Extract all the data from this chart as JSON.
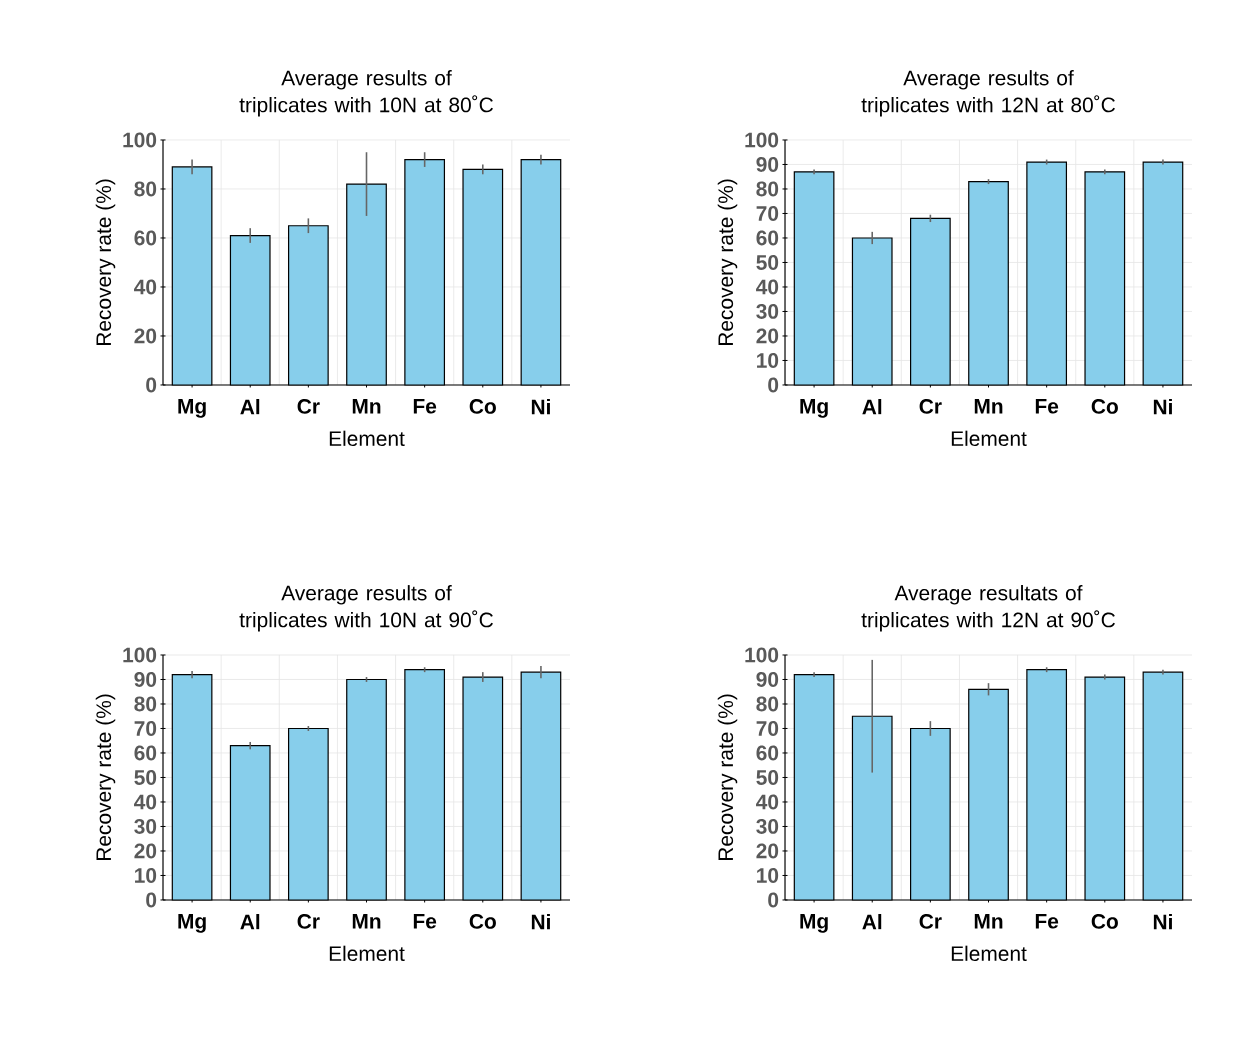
{
  "chart_data": [
    {
      "type": "bar",
      "title": "Average results of triplicates with 10N at 80˚C",
      "xlabel": "Element",
      "ylabel": "Recovery rate (%)",
      "categories": [
        "Mg",
        "Al",
        "Cr",
        "Mn",
        "Fe",
        "Co",
        "Ni"
      ],
      "values": [
        89,
        61,
        65,
        82,
        92,
        88,
        92
      ],
      "errors": [
        3,
        3,
        3,
        13,
        3,
        2,
        2
      ],
      "color": "#87ceeb",
      "ylim": [
        0,
        100
      ],
      "yticks": [
        0,
        20,
        40,
        60,
        80,
        100
      ],
      "grid": true
    },
    {
      "type": "bar",
      "title": "Average results of triplicates with 12N at 80˚C",
      "xlabel": "Element",
      "ylabel": "Recovery rate (%)",
      "categories": [
        "Mg",
        "Al",
        "Cr",
        "Mn",
        "Fe",
        "Co",
        "Ni"
      ],
      "values": [
        87,
        60,
        68,
        83,
        91,
        87,
        91
      ],
      "errors": [
        1,
        2.5,
        1.5,
        1,
        1,
        1,
        1
      ],
      "color": "#87ceeb",
      "ylim": [
        0,
        100
      ],
      "yticks": [
        0,
        10,
        20,
        30,
        40,
        50,
        60,
        70,
        80,
        90,
        100
      ],
      "grid": true
    },
    {
      "type": "bar",
      "title": "Average results of triplicates with 10N at 90˚C",
      "xlabel": "Element",
      "ylabel": "Recovery rate (%)",
      "categories": [
        "Mg",
        "Al",
        "Cr",
        "Mn",
        "Fe",
        "Co",
        "Ni"
      ],
      "values": [
        92,
        63,
        70,
        90,
        94,
        91,
        93
      ],
      "errors": [
        1.5,
        1.5,
        1,
        1,
        1,
        2,
        2.5
      ],
      "color": "#87ceeb",
      "ylim": [
        0,
        100
      ],
      "yticks": [
        0,
        10,
        20,
        30,
        40,
        50,
        60,
        70,
        80,
        90,
        100
      ],
      "grid": true
    },
    {
      "type": "bar",
      "title": "Average resultats of triplicates with 12N at 90˚C",
      "xlabel": "Element",
      "ylabel": "Recovery rate (%)",
      "categories": [
        "Mg",
        "Al",
        "Cr",
        "Mn",
        "Fe",
        "Co",
        "Ni"
      ],
      "values": [
        92,
        75,
        70,
        86,
        94,
        91,
        93
      ],
      "errors": [
        1,
        23,
        3,
        2.5,
        1,
        1,
        1
      ],
      "color": "#87ceeb",
      "ylim": [
        0,
        100
      ],
      "yticks": [
        0,
        10,
        20,
        30,
        40,
        50,
        60,
        70,
        80,
        90,
        100
      ],
      "grid": true
    }
  ]
}
